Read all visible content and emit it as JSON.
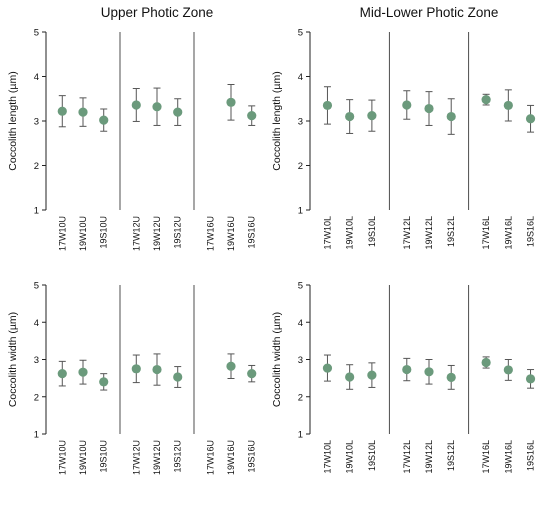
{
  "colors": {
    "marker": "#6b9a7c",
    "errorbar": "#555555",
    "axis": "#222222"
  },
  "chart_data": [
    {
      "type": "scatter",
      "panel": "upper-length",
      "title": "Upper Photic Zone",
      "ylabel": "Coccolith length (µm)",
      "ylim": [
        1,
        5
      ],
      "yticks": [
        "1",
        "2",
        "3",
        "4",
        "5"
      ],
      "categories": [
        "17W10U",
        "19W10U",
        "19S10U",
        "17W12U",
        "19W12U",
        "19S12U",
        "17W16U",
        "19W16U",
        "19S16U"
      ],
      "values": [
        3.22,
        3.2,
        3.02,
        3.36,
        3.32,
        3.2,
        null,
        3.42,
        3.12
      ],
      "error": [
        0.35,
        0.32,
        0.25,
        0.37,
        0.42,
        0.3,
        null,
        0.4,
        0.22
      ]
    },
    {
      "type": "scatter",
      "panel": "midlower-length",
      "title": "Mid-Lower Photic Zone",
      "ylabel": "Coccolith length (µm)",
      "ylim": [
        1,
        5
      ],
      "yticks": [
        "1",
        "2",
        "3",
        "4",
        "5"
      ],
      "categories": [
        "17W10L",
        "19W10L",
        "19S10L",
        "17W12L",
        "19W12L",
        "19S12L",
        "17W16L",
        "19W16L",
        "19S16L"
      ],
      "values": [
        3.35,
        3.1,
        3.12,
        3.36,
        3.28,
        3.1,
        3.48,
        3.35,
        3.05
      ],
      "error": [
        0.42,
        0.38,
        0.35,
        0.32,
        0.38,
        0.4,
        0.12,
        0.35,
        0.3
      ]
    },
    {
      "type": "scatter",
      "panel": "upper-width",
      "title": "",
      "ylabel": "Coccolith width (µm)",
      "ylim": [
        1,
        5
      ],
      "yticks": [
        "1",
        "2",
        "3",
        "4",
        "5"
      ],
      "categories": [
        "17W10U",
        "19W10U",
        "19S10U",
        "17W12U",
        "19W12U",
        "19S12U",
        "17W16U",
        "19W16U",
        "19S16U"
      ],
      "values": [
        2.62,
        2.66,
        2.4,
        2.75,
        2.73,
        2.53,
        null,
        2.82,
        2.62
      ],
      "error": [
        0.33,
        0.32,
        0.22,
        0.37,
        0.42,
        0.28,
        null,
        0.33,
        0.22
      ]
    },
    {
      "type": "scatter",
      "panel": "midlower-width",
      "title": "",
      "ylabel": "Coccolith width (µm)",
      "ylim": [
        1,
        5
      ],
      "yticks": [
        "1",
        "2",
        "3",
        "4",
        "5"
      ],
      "categories": [
        "17W10L",
        "19W10L",
        "19S10L",
        "17W12L",
        "19W12L",
        "19S12L",
        "17W16L",
        "19W16L",
        "19S16L"
      ],
      "values": [
        2.77,
        2.53,
        2.58,
        2.73,
        2.67,
        2.52,
        2.92,
        2.72,
        2.48
      ],
      "error": [
        0.35,
        0.33,
        0.33,
        0.3,
        0.33,
        0.32,
        0.15,
        0.28,
        0.25
      ]
    }
  ]
}
